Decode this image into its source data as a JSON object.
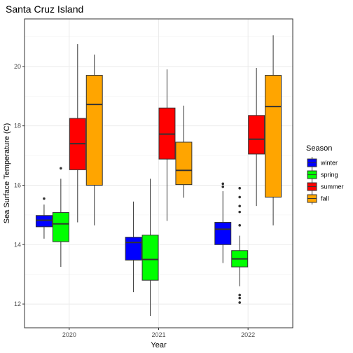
{
  "chart_data": {
    "type": "boxplot",
    "title": "Santa Cruz Island",
    "xlabel": "Year",
    "ylabel": "Sea Surface Temperature (C)",
    "categories": [
      "2020",
      "2021",
      "2022"
    ],
    "ylim": [
      11.2,
      21.6
    ],
    "yticks": [
      12,
      14,
      16,
      18,
      20
    ],
    "grid": true,
    "legend": {
      "title": "Season",
      "position": "right"
    },
    "series": [
      {
        "name": "winter",
        "color": "#0000FF",
        "boxes": [
          {
            "category": "2020",
            "min": 14.2,
            "q1": 14.6,
            "median": 14.82,
            "q3": 14.98,
            "max": 15.35,
            "outliers": [
              15.55
            ]
          },
          {
            "category": "2021",
            "min": 12.4,
            "q1": 13.48,
            "median": 14.07,
            "q3": 14.25,
            "max": 15.45,
            "outliers": []
          },
          {
            "category": "2022",
            "min": 13.38,
            "q1": 14.0,
            "median": 14.52,
            "q3": 14.75,
            "max": 15.8,
            "outliers": [
              15.95,
              16.05
            ]
          }
        ]
      },
      {
        "name": "spring",
        "color": "#00FF00",
        "boxes": [
          {
            "category": "2020",
            "min": 13.25,
            "q1": 14.1,
            "median": 14.7,
            "q3": 15.08,
            "max": 16.22,
            "outliers": [
              16.57
            ]
          },
          {
            "category": "2021",
            "min": 11.6,
            "q1": 12.8,
            "median": 13.5,
            "q3": 14.32,
            "max": 16.22,
            "outliers": []
          },
          {
            "category": "2022",
            "min": 12.6,
            "q1": 13.25,
            "median": 13.52,
            "q3": 13.8,
            "max": 14.3,
            "outliers": [
              12.05,
              12.2,
              12.3,
              14.65,
              15.1,
              15.3,
              15.6,
              15.9
            ]
          }
        ]
      },
      {
        "name": "summer",
        "color": "#FF0000",
        "boxes": [
          {
            "category": "2020",
            "min": 14.75,
            "q1": 16.52,
            "median": 17.4,
            "q3": 18.25,
            "max": 20.75,
            "outliers": []
          },
          {
            "category": "2021",
            "min": 14.8,
            "q1": 16.88,
            "median": 17.72,
            "q3": 18.6,
            "max": 19.9,
            "outliers": []
          },
          {
            "category": "2022",
            "min": 15.3,
            "q1": 17.05,
            "median": 17.55,
            "q3": 18.35,
            "max": 19.95,
            "outliers": []
          }
        ]
      },
      {
        "name": "fall",
        "color": "#FFA500",
        "boxes": [
          {
            "category": "2020",
            "min": 14.65,
            "q1": 16.0,
            "median": 18.72,
            "q3": 19.7,
            "max": 20.4,
            "outliers": []
          },
          {
            "category": "2021",
            "min": 15.58,
            "q1": 16.02,
            "median": 16.5,
            "q3": 17.45,
            "max": 18.68,
            "outliers": []
          },
          {
            "category": "2022",
            "min": 14.65,
            "q1": 15.6,
            "median": 18.65,
            "q3": 19.7,
            "max": 21.05,
            "outliers": []
          }
        ]
      }
    ]
  }
}
